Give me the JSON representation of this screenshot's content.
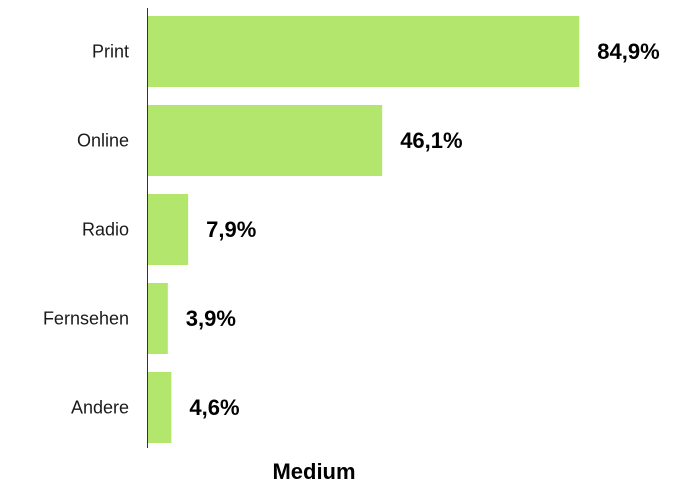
{
  "chart_data": {
    "type": "bar",
    "orientation": "horizontal",
    "categories": [
      "Print",
      "Online",
      "Radio",
      "Fernsehen",
      "Andere"
    ],
    "values": [
      84.9,
      46.1,
      7.9,
      3.9,
      4.6
    ],
    "value_labels": [
      "84,9%",
      "46,1%",
      "7,9%",
      "3,9%",
      "4,6%"
    ],
    "title": "",
    "xlabel": "Medium",
    "ylabel": "",
    "xlim": [
      0,
      100
    ],
    "grid": false,
    "legend": "none",
    "bar_color": "#b3e66d",
    "axis_color": "#333333"
  }
}
